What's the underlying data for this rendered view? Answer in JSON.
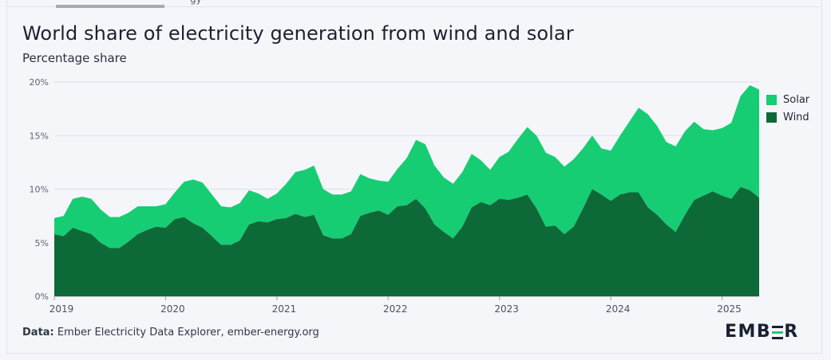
{
  "header": {
    "tab_fragment": "gy"
  },
  "chart_data": {
    "type": "area",
    "stacked": true,
    "title": "World share of electricity generation from wind and solar",
    "subtitle": "Percentage share",
    "y_ticks": [
      "0%",
      "5%",
      "10%",
      "15%",
      "20%"
    ],
    "ylim": [
      0,
      20
    ],
    "x_ticks": [
      "2019",
      "2020",
      "2021",
      "2022",
      "2023",
      "2024",
      "2025"
    ],
    "x_start": "2019-01",
    "x_end": "2025-05",
    "grid": true,
    "legend_position": "right",
    "series": [
      {
        "name": "Wind",
        "color": "#0e6939",
        "values": [
          5.8,
          5.6,
          6.4,
          6.1,
          5.8,
          5.0,
          4.5,
          4.5,
          5.1,
          5.8,
          6.2,
          6.5,
          6.4,
          7.2,
          7.4,
          6.8,
          6.4,
          5.6,
          4.8,
          4.8,
          5.2,
          6.7,
          7.0,
          6.9,
          7.2,
          7.3,
          7.7,
          7.4,
          7.6,
          5.7,
          5.4,
          5.4,
          5.8,
          7.5,
          7.8,
          8.0,
          7.6,
          8.4,
          8.5,
          9.1,
          8.2,
          6.7,
          6.0,
          5.4,
          6.5,
          8.3,
          8.8,
          8.5,
          9.1,
          9.0,
          9.2,
          9.5,
          8.2,
          6.5,
          6.6,
          5.8,
          6.5,
          8.2,
          10.0,
          9.5,
          8.9,
          9.5,
          9.7,
          9.7,
          8.3,
          7.6,
          6.7,
          6.0,
          7.6,
          9.0,
          9.4,
          9.8,
          9.4,
          9.1,
          10.2,
          9.9,
          9.2
        ],
        "legend_label": "Wind"
      },
      {
        "name": "Solar",
        "color": "#17cd74",
        "values": [
          1.5,
          1.9,
          2.7,
          3.2,
          3.3,
          3.1,
          2.9,
          2.9,
          2.7,
          2.6,
          2.2,
          1.9,
          2.2,
          2.5,
          3.3,
          4.1,
          4.2,
          3.9,
          3.6,
          3.5,
          3.5,
          3.2,
          2.6,
          2.2,
          2.4,
          3.2,
          3.9,
          4.4,
          4.6,
          4.3,
          4.1,
          4.1,
          4.0,
          3.9,
          3.2,
          2.8,
          3.1,
          3.5,
          4.4,
          5.5,
          6.0,
          5.5,
          5.1,
          5.1,
          5.1,
          5.0,
          3.9,
          3.3,
          3.9,
          4.5,
          5.5,
          6.3,
          6.8,
          6.9,
          6.4,
          6.3,
          6.3,
          5.6,
          5.0,
          4.3,
          4.7,
          5.5,
          6.6,
          7.9,
          8.7,
          8.3,
          7.7,
          8.0,
          7.8,
          7.3,
          6.2,
          5.7,
          6.3,
          7.1,
          8.5,
          9.8,
          10.1
        ],
        "legend_label": "Solar"
      }
    ]
  },
  "legend": {
    "items": [
      {
        "label": "Solar",
        "color": "#17cd74"
      },
      {
        "label": "Wind",
        "color": "#0e6939"
      }
    ]
  },
  "footer": {
    "source_prefix": "Data:",
    "source_text": " Ember Electricity Data Explorer, ember-energy.org",
    "logo_left": "EMB",
    "logo_right": "R",
    "logo_accent_color": "#17cd74"
  }
}
